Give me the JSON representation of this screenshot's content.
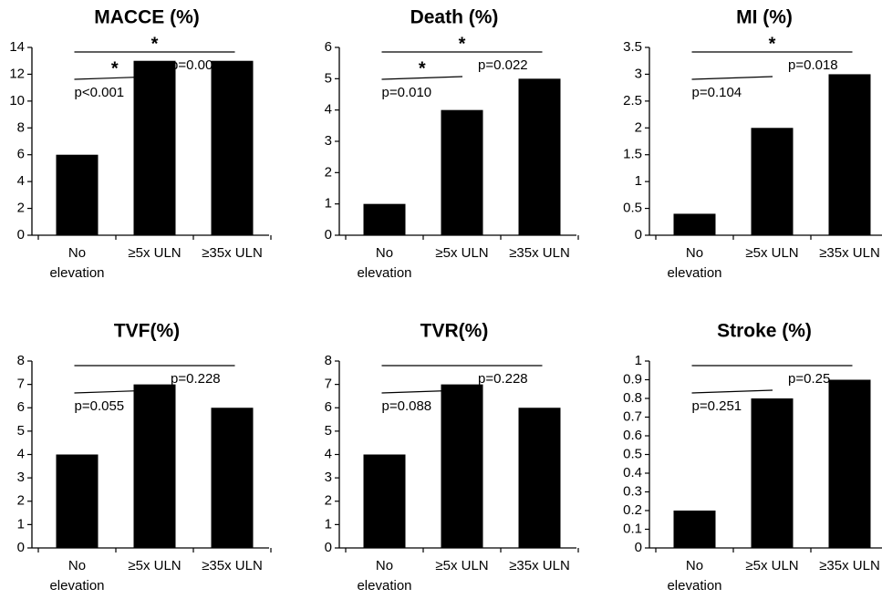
{
  "chart_data": [
    {
      "type": "bar",
      "title": "MACCE (%)",
      "categories": [
        "No elevation",
        "≥5x ULN",
        "≥35x ULN"
      ],
      "values": [
        6,
        13,
        13
      ],
      "color": "#000000",
      "ylim": [
        0,
        14
      ],
      "yticks": [
        0,
        2,
        4,
        6,
        8,
        10,
        12,
        14
      ],
      "annotations": {
        "long_star": "*",
        "short_star": "*",
        "p_short": "p<0.001",
        "p_long": "p=0.00"
      }
    },
    {
      "type": "bar",
      "title": "Death (%)",
      "categories": [
        "No elevation",
        "≥5x ULN",
        "≥35x ULN"
      ],
      "values": [
        1,
        4,
        5
      ],
      "color": "#000000",
      "ylim": [
        0,
        6
      ],
      "yticks": [
        0,
        1,
        2,
        3,
        4,
        5,
        6
      ],
      "annotations": {
        "long_star": "*",
        "short_star": "*",
        "p_short": "p=0.010",
        "p_long": "p=0.022"
      }
    },
    {
      "type": "bar",
      "title": "MI (%)",
      "categories": [
        "No elevation",
        "≥5x ULN",
        "≥35x ULN"
      ],
      "values": [
        0.4,
        2,
        3
      ],
      "color": "#000000",
      "ylim": [
        0,
        3.5
      ],
      "yticks": [
        0,
        0.5,
        1,
        1.5,
        2,
        2.5,
        3,
        3.5
      ],
      "annotations": {
        "long_star": "*",
        "p_short": "p=0.104",
        "p_long": "p=0.018"
      }
    },
    {
      "type": "bar",
      "title": "TVF(%)",
      "categories": [
        "No elevation",
        "≥5x ULN",
        "≥35x ULN"
      ],
      "values": [
        4,
        7,
        6
      ],
      "color": "#000000",
      "ylim": [
        0,
        8
      ],
      "yticks": [
        0,
        1,
        2,
        3,
        4,
        5,
        6,
        7,
        8
      ],
      "annotations": {
        "p_short": "p=0.055",
        "p_long": "p=0.228"
      }
    },
    {
      "type": "bar",
      "title": "TVR(%)",
      "categories": [
        "No elevation",
        "≥5x ULN",
        "≥35x ULN"
      ],
      "values": [
        4,
        7,
        6
      ],
      "color": "#000000",
      "ylim": [
        0,
        8
      ],
      "yticks": [
        0,
        1,
        2,
        3,
        4,
        5,
        6,
        7,
        8
      ],
      "annotations": {
        "p_short": "p=0.088",
        "p_long": "p=0.228"
      }
    },
    {
      "type": "bar",
      "title": "Stroke (%)",
      "categories": [
        "No elevation",
        "≥5x ULN",
        "≥35x ULN"
      ],
      "values": [
        0.2,
        0.8,
        0.9
      ],
      "color": "#000000",
      "ylim": [
        0,
        1
      ],
      "yticks": [
        0,
        0.1,
        0.2,
        0.3,
        0.4,
        0.5,
        0.6,
        0.7,
        0.8,
        0.9,
        1
      ],
      "annotations": {
        "p_short": "p=0.251",
        "p_long": "p=0.25"
      }
    }
  ]
}
